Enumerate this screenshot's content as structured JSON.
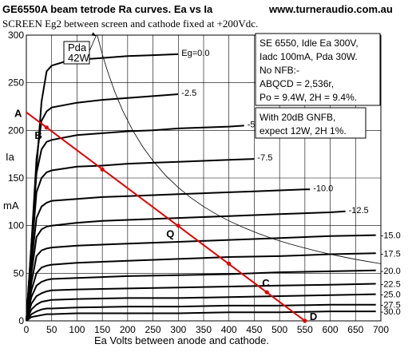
{
  "chart_data": {
    "type": "line",
    "title": "GE6550A beam tetrode Ra curves. Ea vs Ia",
    "website": "www.turneraudio.com.au",
    "subtitle": "SCREEN Eg2 between screen and cathode fixed at +200Vdc.",
    "xlabel": "Ea Volts between anode and cathode.",
    "ylabel_lines": [
      "Ia",
      "mA"
    ],
    "xlim": [
      0,
      700
    ],
    "ylim": [
      0,
      300
    ],
    "x_ticks": [
      0,
      50,
      100,
      150,
      200,
      250,
      300,
      350,
      400,
      450,
      500,
      550,
      600,
      650,
      700
    ],
    "y_ticks": [
      0,
      50,
      100,
      150,
      200,
      250,
      300
    ],
    "grid": true,
    "series": [
      {
        "name": "Eg=0.0",
        "x": [
          0,
          10,
          20,
          30,
          40,
          50,
          75,
          100,
          150,
          200,
          250,
          300
        ],
        "y": [
          0,
          70,
          160,
          230,
          262,
          268,
          272,
          274,
          276,
          278,
          279,
          280
        ]
      },
      {
        "name": "-2.5",
        "x": [
          0,
          10,
          20,
          30,
          40,
          50,
          100,
          150,
          200,
          250,
          300
        ],
        "y": [
          0,
          80,
          170,
          210,
          220,
          224,
          229,
          232,
          234,
          236,
          238
        ]
      },
      {
        "name": "-5.0",
        "x": [
          0,
          10,
          20,
          30,
          40,
          50,
          100,
          150,
          200,
          250,
          300,
          350,
          400,
          430
        ],
        "y": [
          0,
          80,
          155,
          180,
          188,
          190,
          195,
          197,
          199,
          200,
          202,
          203,
          204,
          205
        ]
      },
      {
        "name": "-7.5",
        "x": [
          0,
          10,
          20,
          30,
          40,
          50,
          100,
          150,
          200,
          250,
          300,
          350,
          400,
          450
        ],
        "y": [
          0,
          70,
          135,
          150,
          156,
          158,
          162,
          163,
          165,
          166,
          167,
          168,
          169,
          170
        ]
      },
      {
        "name": "-10.0",
        "x": [
          0,
          10,
          20,
          30,
          40,
          50,
          100,
          150,
          200,
          300,
          400,
          450,
          500,
          550,
          560
        ],
        "y": [
          0,
          60,
          108,
          120,
          124,
          126,
          128,
          130,
          131,
          133,
          135,
          136,
          137,
          138,
          138
        ]
      },
      {
        "name": "-12.5",
        "x": [
          0,
          10,
          20,
          30,
          40,
          50,
          100,
          150,
          200,
          300,
          400,
          500,
          600,
          630
        ],
        "y": [
          0,
          50,
          88,
          96,
          99,
          100,
          103,
          105,
          106,
          108,
          110,
          112,
          114,
          115
        ]
      },
      {
        "name": "-15.0",
        "x": [
          0,
          10,
          20,
          30,
          40,
          50,
          100,
          200,
          300,
          400,
          500,
          600,
          690
        ],
        "y": [
          0,
          40,
          68,
          74,
          76,
          77,
          79,
          81,
          83,
          85,
          87,
          89,
          90
        ]
      },
      {
        "name": "-17.5",
        "x": [
          0,
          10,
          20,
          30,
          40,
          50,
          100,
          200,
          300,
          400,
          500,
          600,
          690
        ],
        "y": [
          0,
          32,
          50,
          56,
          58,
          59,
          61,
          63,
          65,
          67,
          68,
          70,
          71
        ]
      },
      {
        "name": "-20.0",
        "x": [
          0,
          10,
          20,
          30,
          40,
          50,
          100,
          200,
          300,
          400,
          500,
          600,
          690
        ],
        "y": [
          0,
          25,
          37,
          41,
          43,
          44,
          45,
          47,
          48,
          49,
          51,
          52,
          53
        ]
      },
      {
        "name": "-22.5",
        "x": [
          0,
          10,
          20,
          30,
          40,
          50,
          100,
          200,
          300,
          400,
          500,
          600,
          690
        ],
        "y": [
          0,
          18,
          26,
          29,
          31,
          32,
          33,
          34,
          35,
          36,
          37,
          38,
          39
        ]
      },
      {
        "name": "-25.0",
        "x": [
          0,
          10,
          20,
          30,
          40,
          50,
          100,
          200,
          300,
          400,
          500,
          600,
          690
        ],
        "y": [
          0,
          12,
          17,
          20,
          21,
          22,
          23,
          24,
          24,
          25,
          26,
          27,
          28
        ]
      },
      {
        "name": "-27.5",
        "x": [
          0,
          10,
          20,
          30,
          40,
          50,
          100,
          200,
          300,
          400,
          500,
          600,
          690
        ],
        "y": [
          0,
          7,
          10,
          12,
          13,
          13,
          14,
          15,
          15,
          16,
          16,
          17,
          17
        ]
      },
      {
        "name": "-30.0",
        "x": [
          0,
          10,
          20,
          30,
          40,
          50,
          100,
          200,
          300,
          400,
          500,
          600,
          690
        ],
        "y": [
          0,
          4,
          5,
          6,
          7,
          7,
          8,
          8,
          8,
          9,
          9,
          10,
          10
        ]
      }
    ],
    "pda_curve": {
      "label_lines": [
        "Pda",
        "42W"
      ],
      "x": [
        140,
        150,
        160,
        175,
        190,
        210,
        230,
        250,
        275,
        300,
        325,
        350,
        375,
        400,
        430,
        460,
        490,
        520,
        550,
        580,
        610,
        640,
        670,
        700
      ],
      "y": [
        300,
        280,
        262.5,
        240,
        221,
        200,
        182.6,
        168,
        152.7,
        140,
        129.2,
        120,
        112,
        105,
        97.7,
        91.3,
        85.7,
        80.8,
        76.4,
        72.4,
        68.9,
        65.6,
        62.7,
        60
      ]
    },
    "load_line": {
      "x": [
        0,
        550
      ],
      "y": [
        219,
        0
      ],
      "points": [
        {
          "label": "A",
          "x": 0,
          "y": 219
        },
        {
          "label": "B",
          "x": 40,
          "y": 203
        },
        {
          "label": "Q",
          "x": 300,
          "y": 100
        },
        {
          "label": "C",
          "x": 475,
          "y": 30
        },
        {
          "label": "D",
          "x": 550,
          "y": 0
        }
      ],
      "node_markers": [
        {
          "x": 40,
          "y": 203
        },
        {
          "x": 150,
          "y": 159
        },
        {
          "x": 300,
          "y": 100
        },
        {
          "x": 400,
          "y": 60
        },
        {
          "x": 475,
          "y": 30
        },
        {
          "x": 550,
          "y": 0
        }
      ]
    },
    "pda_arrow": {
      "x": [
        138,
        142
      ],
      "y": [
        298,
        305
      ]
    },
    "note_upper": [
      "SE 6550, Idle Ea 300V,",
      "Iadc 100mA,   Pda 30W.",
      "No NFB:-",
      "ABQCD = 2,536r,",
      "Po = 9.4W, 2H = 9.4%."
    ],
    "note_lower": [
      "With 20dB GNFB,",
      "expect 12W, 2H 1%."
    ],
    "colors": {
      "curve": "#000000",
      "load_line": "#e00000",
      "grid": "#000000",
      "background": "#ffffff"
    }
  }
}
